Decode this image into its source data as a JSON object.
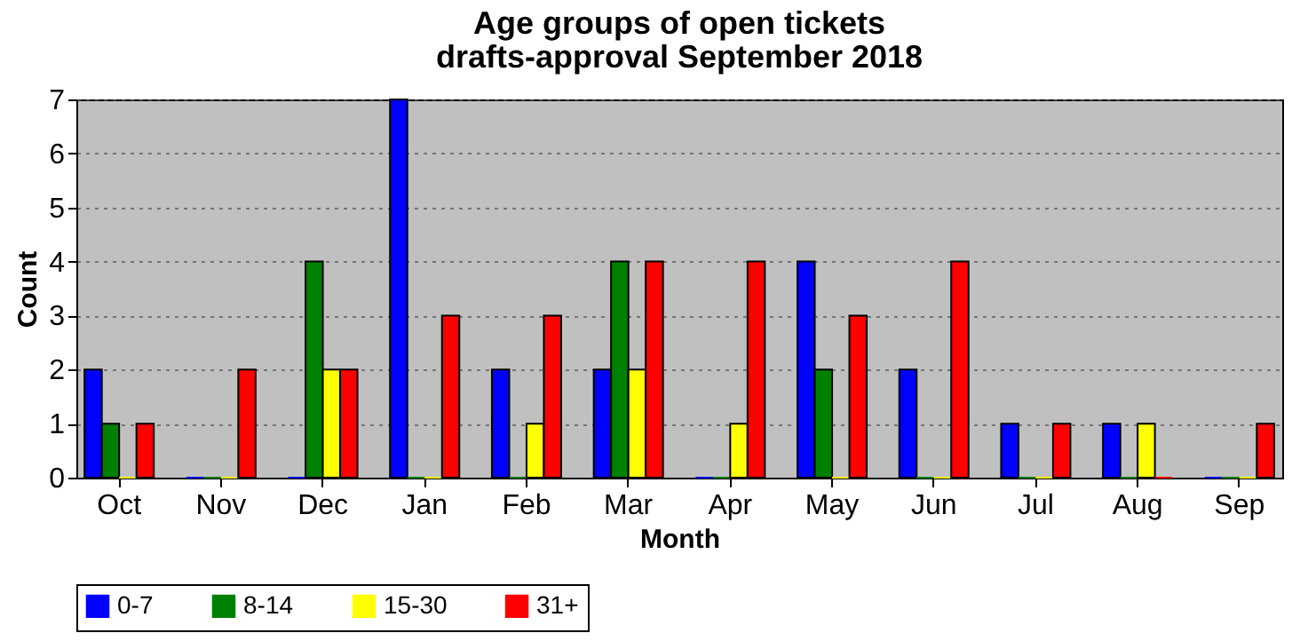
{
  "chart_data": {
    "type": "bar",
    "title": "Age groups of open tickets",
    "subtitle": "drafts-approval September 2018",
    "xlabel": "Month",
    "ylabel": "Count",
    "categories": [
      "Oct",
      "Nov",
      "Dec",
      "Jan",
      "Feb",
      "Mar",
      "Apr",
      "May",
      "Jun",
      "Jul",
      "Aug",
      "Sep"
    ],
    "series": [
      {
        "name": "0-7",
        "color": "#0000ff",
        "values": [
          2,
          0,
          0,
          7,
          2,
          2,
          0,
          4,
          2,
          1,
          1,
          0
        ]
      },
      {
        "name": "8-14",
        "color": "#008000",
        "values": [
          1,
          0,
          4,
          0,
          0,
          4,
          0,
          2,
          0,
          0,
          0,
          0
        ]
      },
      {
        "name": "15-30",
        "color": "#ffff00",
        "values": [
          0,
          0,
          2,
          0,
          1,
          2,
          1,
          0,
          0,
          0,
          1,
          0
        ]
      },
      {
        "name": "31+",
        "color": "#ff0000",
        "values": [
          1,
          2,
          2,
          3,
          3,
          4,
          4,
          3,
          4,
          1,
          0,
          1
        ]
      }
    ],
    "ylim": [
      0,
      7
    ],
    "yticks": [
      0,
      1,
      2,
      3,
      4,
      5,
      6,
      7
    ],
    "grid": "y",
    "legend": "bottom"
  }
}
